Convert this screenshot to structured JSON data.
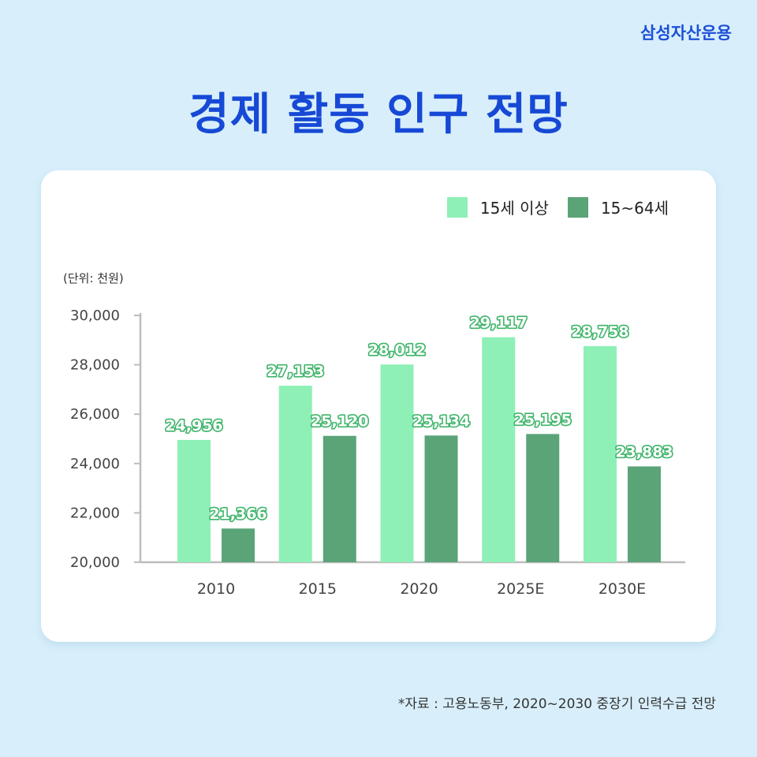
{
  "brand": "삼성자산운용",
  "title": "경제 활동 인구 전망",
  "unit_label": "(단위: 천원)",
  "source": "*자료 : 고용노동부, 2020~2030 중장기 인력수급 전망",
  "colors": {
    "background": "#d8effb",
    "title": "#1749d6",
    "series_1": "#8ef0b6",
    "series_2": "#5aa478",
    "label_stroke": "#3fb46a"
  },
  "chart_data": {
    "type": "bar",
    "categories": [
      "2010",
      "2015",
      "2020",
      "2025E",
      "2030E"
    ],
    "series": [
      {
        "name": "15세 이상",
        "values": [
          24956,
          27153,
          28012,
          29117,
          28758
        ],
        "labels": [
          "24,956",
          "27,153",
          "28,012",
          "29,117",
          "28,758"
        ]
      },
      {
        "name": "15~64세",
        "values": [
          21366,
          25120,
          25134,
          25195,
          23883
        ],
        "labels": [
          "21,366",
          "25,120",
          "25,134",
          "25,195",
          "23,883"
        ]
      }
    ],
    "ylim": [
      20000,
      30000
    ],
    "yticks": [
      20000,
      22000,
      24000,
      26000,
      28000,
      30000
    ],
    "ytick_labels": [
      "20,000",
      "22,000",
      "24,000",
      "26,000",
      "28,000",
      "30,000"
    ],
    "legend_position": "top-right",
    "grid": false
  }
}
